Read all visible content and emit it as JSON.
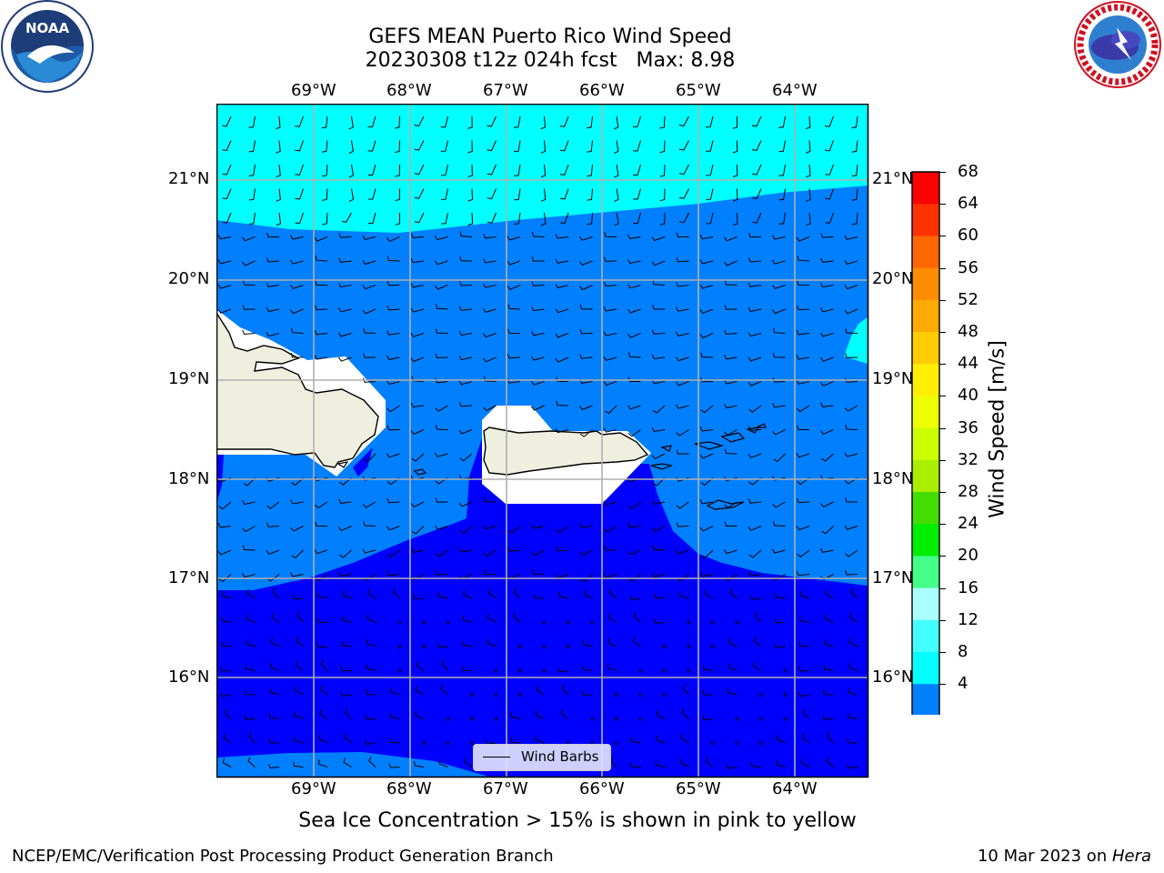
{
  "title": {
    "line1": "GEFS MEAN Puerto Rico Wind Speed",
    "line2": "20230308 t12z 024h fcst   Max: 8.98"
  },
  "logos": {
    "left": {
      "icon": "noaa-logo",
      "text": "NOAA",
      "ring_text": "NATIONAL OCEANIC AND ATMOSPHERIC ADMINISTRATION · U.S. DEPARTMENT OF COMMERCE"
    },
    "right": {
      "icon": "nws-logo",
      "ring_text": "NATIONAL WEATHER SERVICE"
    }
  },
  "map": {
    "lon_labels": [
      "69°W",
      "68°W",
      "67°W",
      "66°W",
      "65°W",
      "64°W"
    ],
    "lat_labels": [
      "21°N",
      "20°N",
      "19°N",
      "18°N",
      "17°N",
      "16°N"
    ],
    "colors": {
      "band_4_8": "#0080ff",
      "band_below_4": "#0000ff",
      "band_8_12": "#00ffff",
      "land": "#efefdf",
      "mask": "#ffffff",
      "grid": "#b0b0b0"
    }
  },
  "legend": {
    "label": "Wind Barbs"
  },
  "colorbar": {
    "label": "Wind Speed [m/s]",
    "ticks": [
      "68",
      "64",
      "60",
      "56",
      "52",
      "48",
      "44",
      "40",
      "36",
      "32",
      "28",
      "24",
      "20",
      "16",
      "12",
      "8",
      "4"
    ],
    "colors": [
      "#ff0000",
      "#ff3300",
      "#ff6600",
      "#ff8c00",
      "#ffaa00",
      "#ffcc00",
      "#ffee00",
      "#eeff00",
      "#ccff00",
      "#aaee00",
      "#44dd00",
      "#00ee00",
      "#44ff88",
      "#aaffff",
      "#44ffff",
      "#00ffff",
      "#0080ff"
    ],
    "under_color": "#0000ff"
  },
  "note": "Sea Ice Concentration > 15% is shown in pink to yellow",
  "footer": {
    "left": "NCEP/EMC/Verification Post Processing Product Generation Branch",
    "right_prefix": "10 Mar 2023 on ",
    "right_host": "Hera"
  }
}
